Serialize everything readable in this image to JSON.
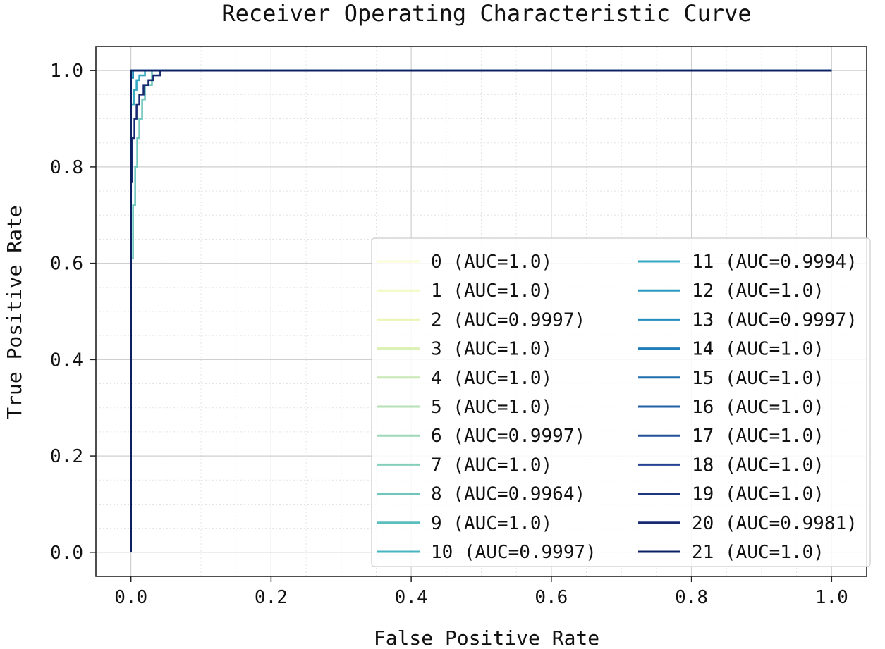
{
  "chart_data": {
    "type": "line",
    "title": "Receiver Operating Characteristic Curve",
    "xlabel": "False Positive Rate",
    "ylabel": "True Positive Rate",
    "xlim": [
      -0.05,
      1.05
    ],
    "ylim": [
      -0.05,
      1.05
    ],
    "xticks": [
      "0.0",
      "0.2",
      "0.4",
      "0.6",
      "0.8",
      "1.0"
    ],
    "yticks": [
      "0.0",
      "0.2",
      "0.4",
      "0.6",
      "0.8",
      "1.0"
    ],
    "grid": true,
    "minor_grid": true,
    "legend_position": "lower-right",
    "legend_columns": 2,
    "series": [
      {
        "name": "0 (AUC=1.0)",
        "color": "#fbfdd3",
        "x": [
          0,
          0,
          1
        ],
        "y": [
          0,
          1,
          1
        ]
      },
      {
        "name": "1 (AUC=1.0)",
        "color": "#f2f9c2",
        "x": [
          0,
          0,
          1
        ],
        "y": [
          0,
          1,
          1
        ]
      },
      {
        "name": "2 (AUC=0.9997)",
        "color": "#e9f6b5",
        "x": [
          0,
          0,
          0.003,
          0.003,
          1
        ],
        "y": [
          0,
          0.99,
          0.99,
          1,
          1
        ]
      },
      {
        "name": "3 (AUC=1.0)",
        "color": "#dbf0b4",
        "x": [
          0,
          0,
          1
        ],
        "y": [
          0,
          1,
          1
        ]
      },
      {
        "name": "4 (AUC=1.0)",
        "color": "#c9e8b4",
        "x": [
          0,
          0,
          1
        ],
        "y": [
          0,
          1,
          1
        ]
      },
      {
        "name": "5 (AUC=1.0)",
        "color": "#b5e1b6",
        "x": [
          0,
          0,
          1
        ],
        "y": [
          0,
          1,
          1
        ]
      },
      {
        "name": "6 (AUC=0.9997)",
        "color": "#9ed8b8",
        "x": [
          0,
          0,
          0.003,
          0.003,
          1
        ],
        "y": [
          0,
          0.99,
          0.99,
          1,
          1
        ]
      },
      {
        "name": "7 (AUC=1.0)",
        "color": "#86cfbb",
        "x": [
          0,
          0,
          1
        ],
        "y": [
          0,
          1,
          1
        ]
      },
      {
        "name": "8 (AUC=0.9964)",
        "color": "#6fc6bd",
        "x": [
          0,
          0,
          0.003,
          0.003,
          0.006,
          0.006,
          0.009,
          0.009,
          0.012,
          0.012,
          0.016,
          0.016,
          0.02,
          0.02,
          0.03,
          0.03,
          1
        ],
        "y": [
          0,
          0.61,
          0.61,
          0.72,
          0.72,
          0.8,
          0.8,
          0.86,
          0.86,
          0.9,
          0.9,
          0.94,
          0.94,
          0.97,
          0.97,
          1,
          1
        ]
      },
      {
        "name": "9 (AUC=1.0)",
        "color": "#5abebf",
        "x": [
          0,
          0,
          1
        ],
        "y": [
          0,
          1,
          1
        ]
      },
      {
        "name": "10 (AUC=0.9997)",
        "color": "#46b5c1",
        "x": [
          0,
          0,
          0.003,
          0.003,
          1
        ],
        "y": [
          0,
          0.985,
          0.985,
          1,
          1
        ]
      },
      {
        "name": "11 (AUC=0.9994)",
        "color": "#35a9c2",
        "x": [
          0,
          0,
          0.004,
          0.004,
          0.008,
          0.008,
          0.012,
          0.012,
          0.02,
          0.02,
          1
        ],
        "y": [
          0,
          0.93,
          0.93,
          0.96,
          0.96,
          0.98,
          0.98,
          0.99,
          0.99,
          1,
          1
        ]
      },
      {
        "name": "12 (AUC=1.0)",
        "color": "#289cc1",
        "x": [
          0,
          0,
          1
        ],
        "y": [
          0,
          1,
          1
        ]
      },
      {
        "name": "13 (AUC=0.9997)",
        "color": "#1f8dbd",
        "x": [
          0,
          0,
          0.003,
          0.003,
          1
        ],
        "y": [
          0,
          0.985,
          0.985,
          1,
          1
        ]
      },
      {
        "name": "14 (AUC=1.0)",
        "color": "#1f7eb7",
        "x": [
          0,
          0,
          1
        ],
        "y": [
          0,
          1,
          1
        ]
      },
      {
        "name": "15 (AUC=1.0)",
        "color": "#216eae",
        "x": [
          0,
          0,
          1
        ],
        "y": [
          0,
          1,
          1
        ]
      },
      {
        "name": "16 (AUC=1.0)",
        "color": "#235fa6",
        "x": [
          0,
          0,
          1
        ],
        "y": [
          0,
          1,
          1
        ]
      },
      {
        "name": "17 (AUC=1.0)",
        "color": "#24509e",
        "x": [
          0,
          0,
          1
        ],
        "y": [
          0,
          1,
          1
        ]
      },
      {
        "name": "18 (AUC=1.0)",
        "color": "#244395",
        "x": [
          0,
          0,
          1
        ],
        "y": [
          0,
          1,
          1
        ]
      },
      {
        "name": "19 (AUC=1.0)",
        "color": "#1f3683",
        "x": [
          0,
          0,
          1
        ],
        "y": [
          0,
          1,
          1
        ]
      },
      {
        "name": "20 (AUC=0.9981)",
        "color": "#182b72",
        "x": [
          0,
          0,
          0.002,
          0.002,
          0.005,
          0.005,
          0.008,
          0.008,
          0.012,
          0.012,
          0.018,
          0.018,
          0.025,
          0.025,
          0.032,
          0.032,
          0.042,
          0.042,
          1
        ],
        "y": [
          0,
          0.77,
          0.77,
          0.86,
          0.86,
          0.9,
          0.9,
          0.93,
          0.93,
          0.95,
          0.95,
          0.97,
          0.97,
          0.98,
          0.98,
          0.99,
          0.99,
          1,
          1
        ]
      },
      {
        "name": "21 (AUC=1.0)",
        "color": "#0c2061",
        "x": [
          0,
          0,
          1
        ],
        "y": [
          0,
          1,
          1
        ]
      }
    ]
  }
}
